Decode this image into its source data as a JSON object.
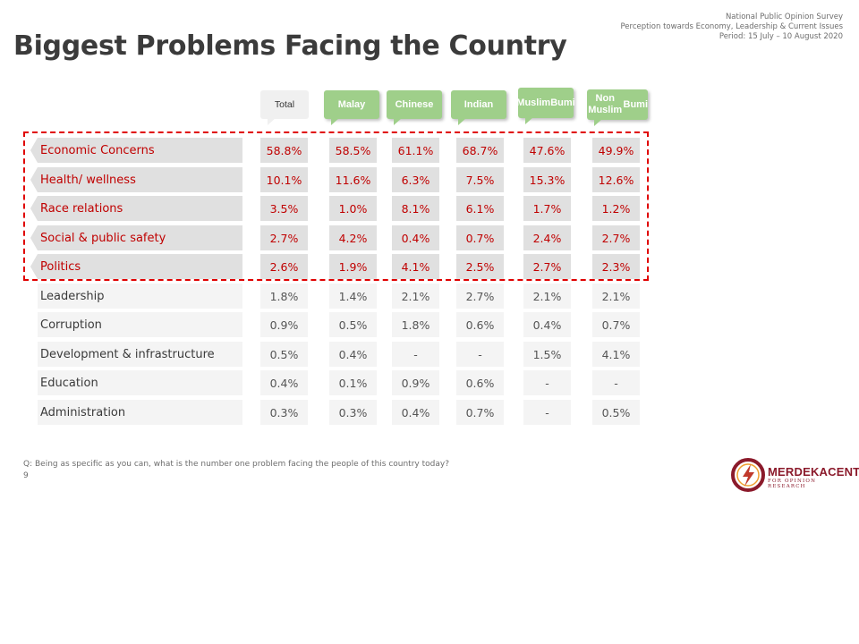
{
  "header": {
    "survey_lines": [
      "National Public Opinion Survey",
      "Perception towards Economy, Leadership & Current Issues",
      "Period: 15 July – 10 August 2020"
    ],
    "title": "Biggest Problems Facing the Country"
  },
  "columns": [
    {
      "lines": [
        "Total"
      ],
      "style": "plain"
    },
    {
      "lines": [
        "Malay"
      ],
      "style": "green"
    },
    {
      "lines": [
        "Chinese"
      ],
      "style": "green"
    },
    {
      "lines": [
        "Indian"
      ],
      "style": "green"
    },
    {
      "lines": [
        "Muslim",
        "Bumi"
      ],
      "style": "green"
    },
    {
      "lines": [
        "Non Muslim",
        "Bumi"
      ],
      "style": "green"
    }
  ],
  "rows": [
    {
      "label": "Economic Concerns",
      "highlight": true,
      "values": [
        "58.8%",
        "58.5%",
        "61.1%",
        "68.7%",
        "47.6%",
        "49.9%"
      ]
    },
    {
      "label": "Health/ wellness",
      "highlight": true,
      "values": [
        "10.1%",
        "11.6%",
        "6.3%",
        "7.5%",
        "15.3%",
        "12.6%"
      ]
    },
    {
      "label": "Race relations",
      "highlight": true,
      "values": [
        "3.5%",
        "1.0%",
        "8.1%",
        "6.1%",
        "1.7%",
        "1.2%"
      ]
    },
    {
      "label": "Social & public safety",
      "highlight": true,
      "values": [
        "2.7%",
        "4.2%",
        "0.4%",
        "0.7%",
        "2.4%",
        "2.7%"
      ]
    },
    {
      "label": "Politics",
      "highlight": true,
      "values": [
        "2.6%",
        "1.9%",
        "4.1%",
        "2.5%",
        "2.7%",
        "2.3%"
      ]
    },
    {
      "label": "Leadership",
      "highlight": false,
      "values": [
        "1.8%",
        "1.4%",
        "2.1%",
        "2.7%",
        "2.1%",
        "2.1%"
      ]
    },
    {
      "label": "Corruption",
      "highlight": false,
      "values": [
        "0.9%",
        "0.5%",
        "1.8%",
        "0.6%",
        "0.4%",
        "0.7%"
      ]
    },
    {
      "label": "Development & infrastructure",
      "highlight": false,
      "values": [
        "0.5%",
        "0.4%",
        "-",
        "-",
        "1.5%",
        "4.1%"
      ]
    },
    {
      "label": "Education",
      "highlight": false,
      "values": [
        "0.4%",
        "0.1%",
        "0.9%",
        "0.6%",
        "-",
        "-"
      ]
    },
    {
      "label": "Administration",
      "highlight": false,
      "values": [
        "0.3%",
        "0.3%",
        "0.4%",
        "0.7%",
        "-",
        "0.5%"
      ]
    }
  ],
  "footer": {
    "question": "Q:  Being as specific as you can, what is the number one problem facing the people of this country today?",
    "page_number": "9"
  },
  "logo": {
    "name": "MERDEKACENTER",
    "subtitle": "FOR OPINION RESEARCH",
    "colors": {
      "maroon": "#8b1a2b",
      "orange": "#f0a030"
    }
  },
  "colors": {
    "highlight_text": "#c00000",
    "highlight_box": "#e00000",
    "header_green": "#9fcf8a"
  }
}
